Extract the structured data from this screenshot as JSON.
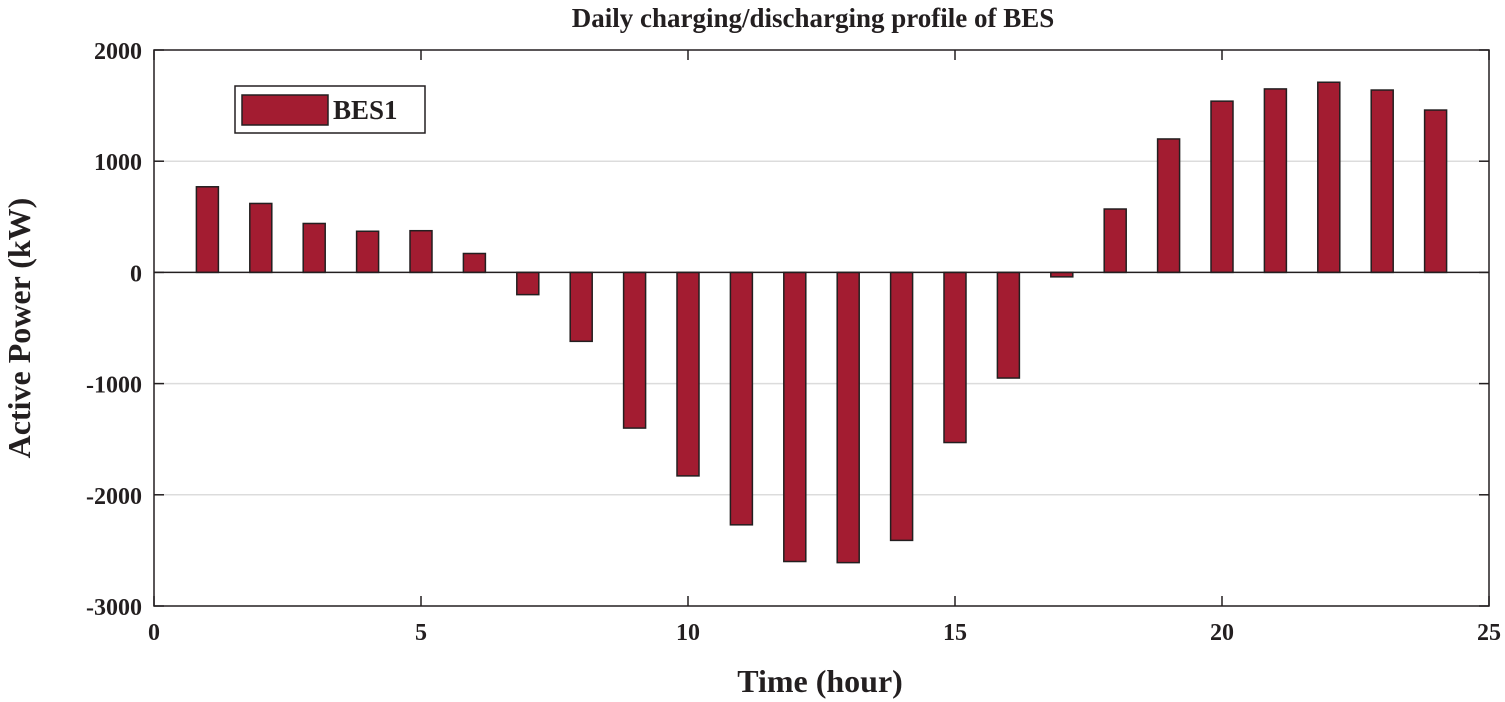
{
  "chart_data": {
    "type": "bar",
    "title": "Daily charging/discharging profile of BES",
    "xlabel": "Time (hour)",
    "ylabel": "Active Power (kW)",
    "xlim": [
      0,
      25
    ],
    "ylim": [
      -3000,
      2000
    ],
    "xticks": [
      0,
      5,
      10,
      15,
      20,
      25
    ],
    "yticks": [
      -3000,
      -2000,
      -1000,
      0,
      1000,
      2000
    ],
    "xtick_labels": [
      "0",
      "5",
      "10",
      "15",
      "20",
      "25"
    ],
    "ytick_labels": [
      "-3000",
      "-2000",
      "-1000",
      "0",
      "1000",
      "2000"
    ],
    "grid": "horizontal",
    "legend_position": "top-left",
    "series": [
      {
        "name": "BES1",
        "color": "#a31c31",
        "edge_color": "#231f20",
        "x": [
          1,
          2,
          3,
          4,
          5,
          6,
          7,
          8,
          9,
          10,
          11,
          12,
          13,
          14,
          15,
          16,
          17,
          18,
          19,
          20,
          21,
          22,
          23,
          24
        ],
        "values": [
          770,
          620,
          440,
          370,
          375,
          170,
          -200,
          -620,
          -1400,
          -1830,
          -2270,
          -2600,
          -2610,
          -2410,
          -1530,
          -950,
          -40,
          570,
          1200,
          1540,
          1650,
          1710,
          1640,
          1460
        ]
      }
    ]
  }
}
